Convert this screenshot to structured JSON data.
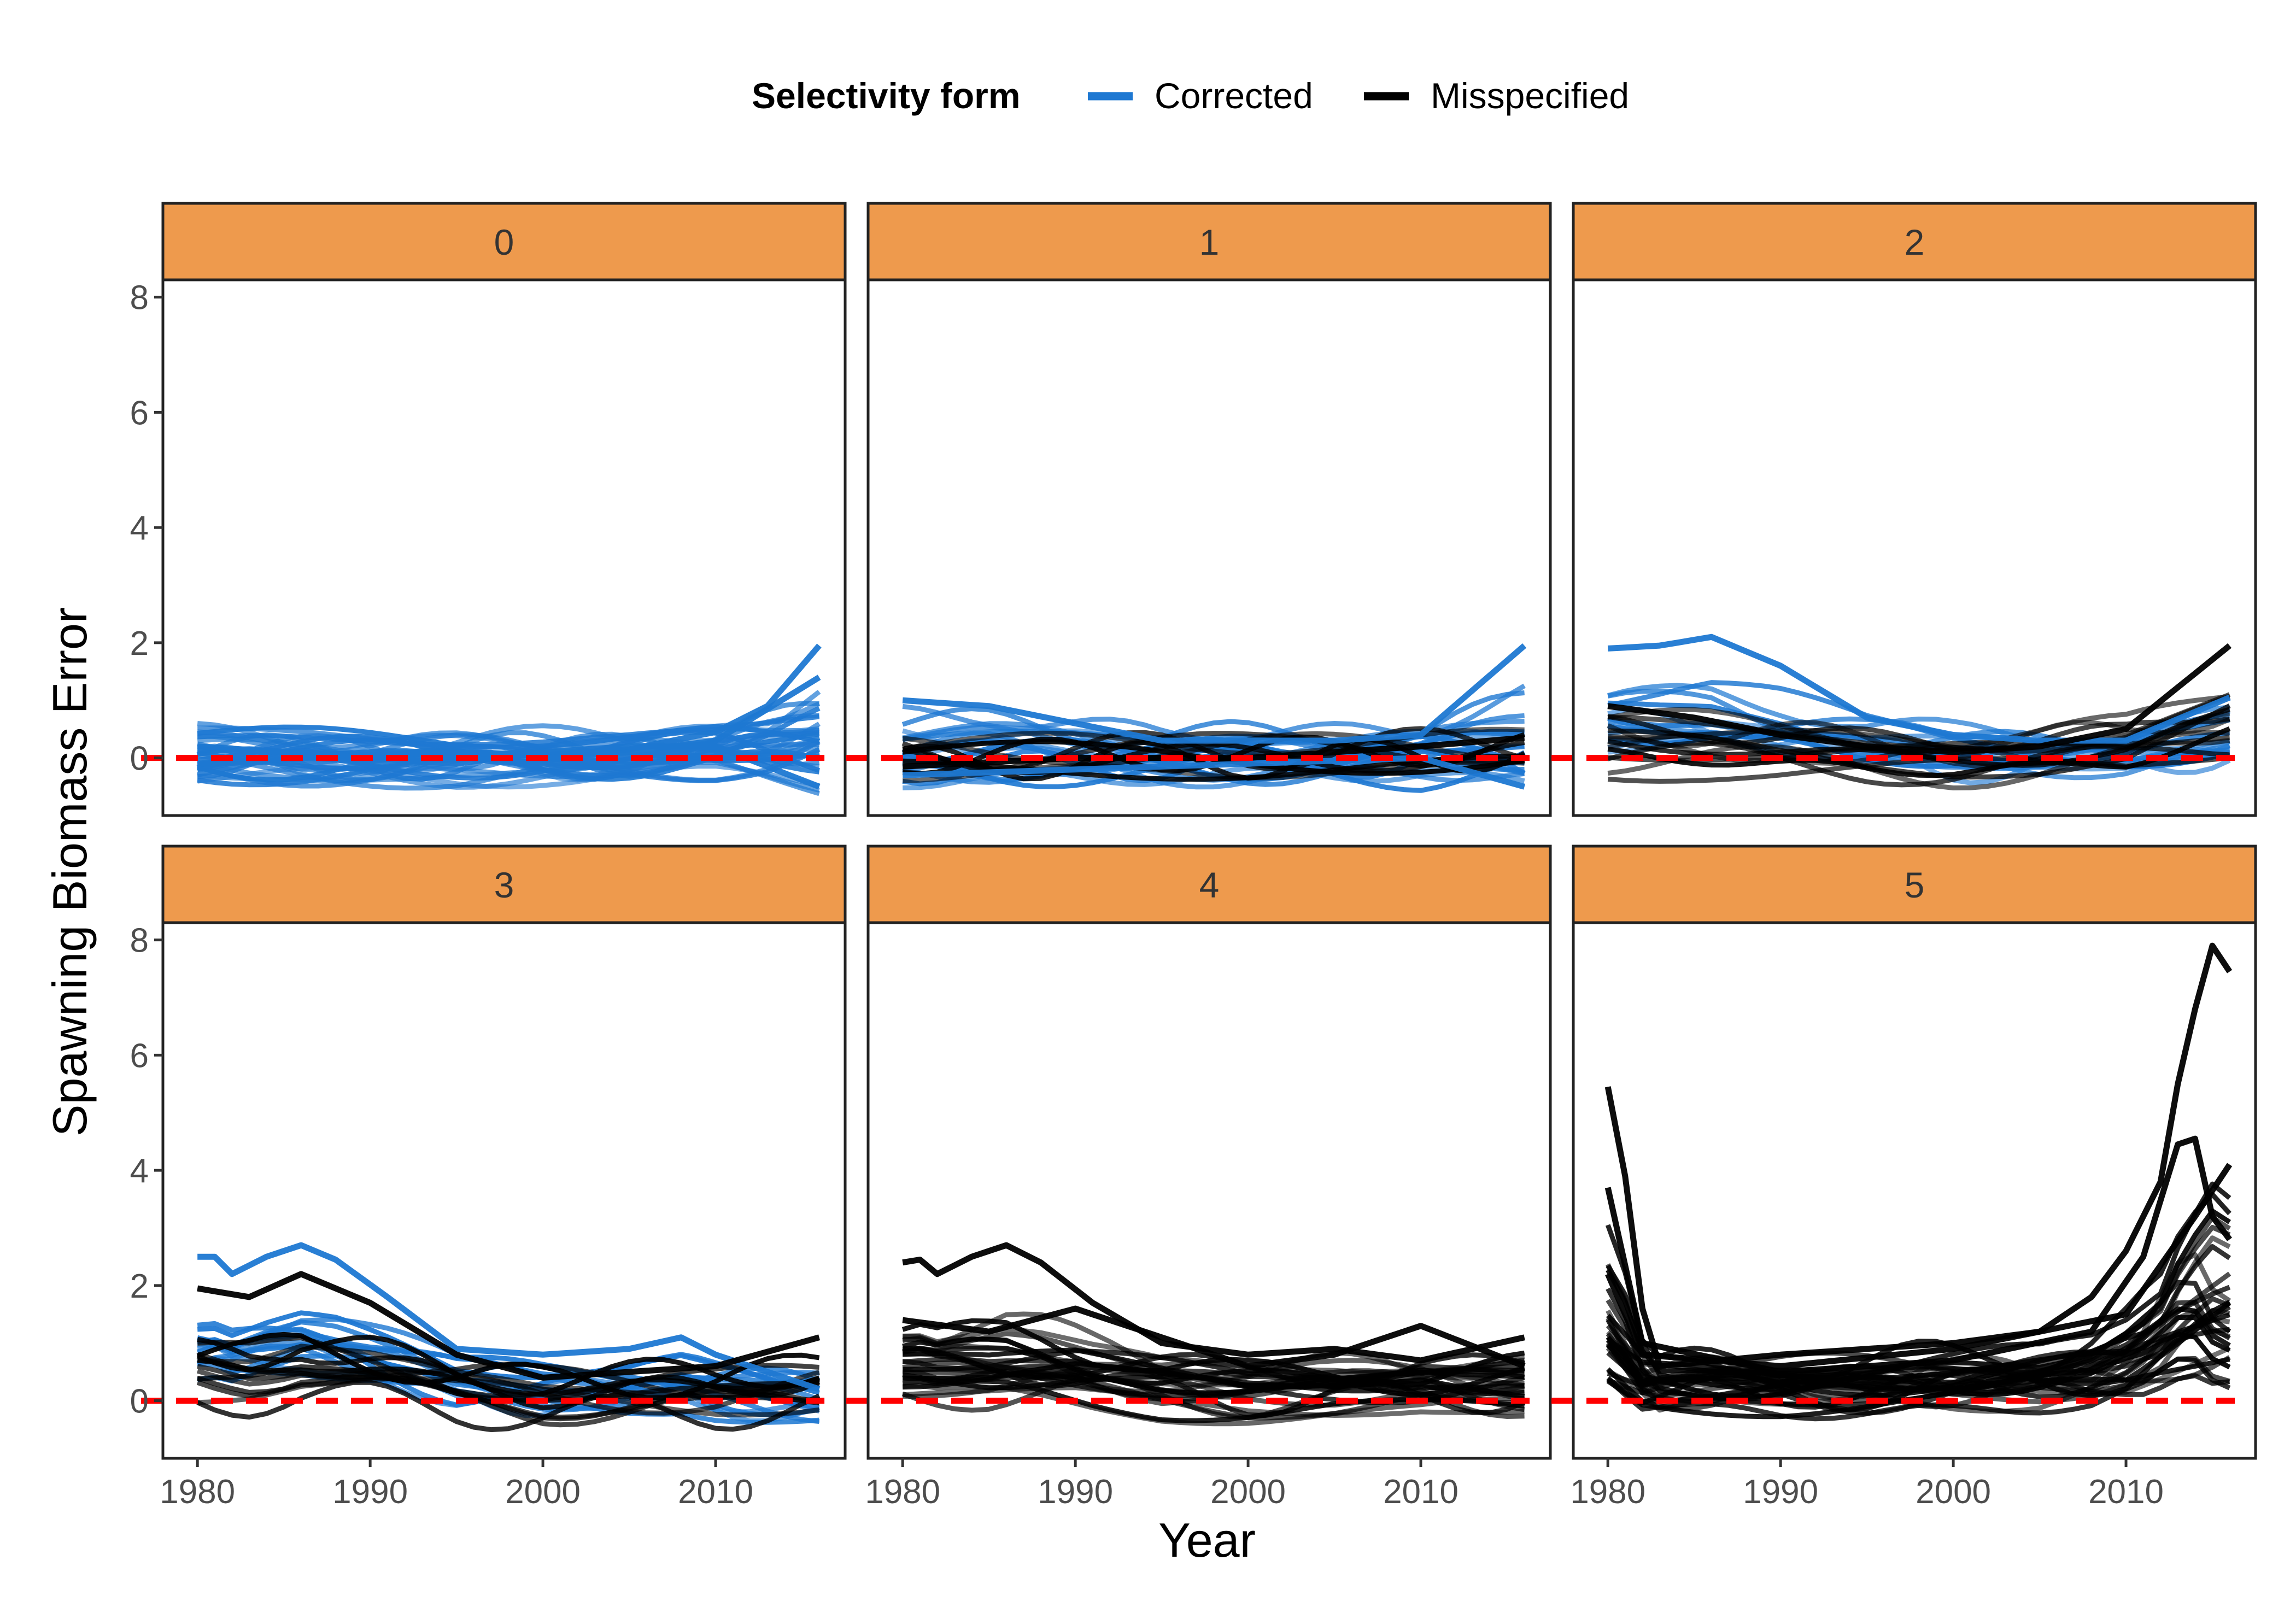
{
  "legend": {
    "title": "Selectivity form",
    "items": [
      {
        "label": "Corrected",
        "color": "#1E78D2"
      },
      {
        "label": "Misspecified",
        "color": "#000000"
      }
    ]
  },
  "axes": {
    "xlabel": "Year",
    "ylabel": "Spawning Biomass Error",
    "x_ticks": [
      "1980",
      "1990",
      "2000",
      "2010"
    ],
    "y_ticks": [
      "0",
      "2",
      "4",
      "6",
      "8"
    ]
  },
  "colors": {
    "strip_fill": "#EE9A4D",
    "reference_line": "#FF0000",
    "corrected": "#1E78D2",
    "misspecified": "#000000"
  },
  "chart_data": {
    "type": "line",
    "facet_variable": "panel",
    "x_range": [
      1980,
      2016
    ],
    "xlim": [
      1978,
      2017.5
    ],
    "ylim": [
      -1.0,
      8.3
    ],
    "reference_line": {
      "y": 0,
      "style": "dashed",
      "color": "#FF0000"
    },
    "xlabel": "Year",
    "ylabel": "Spawning Biomass Error",
    "panels": [
      {
        "label": "0",
        "description": "Mostly Corrected runs; small errors near 0, a few rising toward the end.",
        "series": [
          {
            "name": "Corrected",
            "points": [
              [
                1980,
                0.15
              ],
              [
                1985,
                0.1
              ],
              [
                1990,
                0.05
              ],
              [
                1995,
                0.0
              ],
              [
                2000,
                0.05
              ],
              [
                2005,
                0.15
              ],
              [
                2010,
                0.45
              ],
              [
                2013,
                0.9
              ],
              [
                2016,
                1.95
              ]
            ]
          },
          {
            "name": "Corrected",
            "points": [
              [
                1980,
                -0.1
              ],
              [
                1985,
                0.0
              ],
              [
                1990,
                0.05
              ],
              [
                1995,
                0.1
              ],
              [
                2000,
                0.05
              ],
              [
                2005,
                0.1
              ],
              [
                2010,
                0.3
              ],
              [
                2016,
                1.4
              ]
            ]
          },
          {
            "name": "Corrected",
            "points": [
              [
                1980,
                0.2
              ],
              [
                1985,
                0.1
              ],
              [
                1990,
                0.0
              ],
              [
                1995,
                -0.1
              ],
              [
                2000,
                0.1
              ],
              [
                2005,
                0.2
              ],
              [
                2010,
                0.2
              ],
              [
                2016,
                -0.5
              ]
            ]
          }
        ]
      },
      {
        "label": "1",
        "description": "Corrected band mostly within -0.3 to 1; Misspecified lines near 0.",
        "series": [
          {
            "name": "Corrected",
            "points": [
              [
                1980,
                1.0
              ],
              [
                1985,
                0.9
              ],
              [
                1990,
                0.6
              ],
              [
                1995,
                0.3
              ],
              [
                2000,
                0.3
              ],
              [
                2005,
                0.3
              ],
              [
                2010,
                0.4
              ],
              [
                2016,
                1.95
              ]
            ]
          },
          {
            "name": "Corrected",
            "points": [
              [
                1980,
                -0.3
              ],
              [
                1990,
                -0.2
              ],
              [
                2000,
                -0.1
              ],
              [
                2010,
                0.0
              ],
              [
                2016,
                -0.5
              ]
            ]
          },
          {
            "name": "Misspecified",
            "points": [
              [
                1980,
                -0.15
              ],
              [
                1990,
                0.0
              ],
              [
                2000,
                0.0
              ],
              [
                2010,
                0.2
              ],
              [
                2016,
                0.35
              ]
            ]
          }
        ]
      },
      {
        "label": "2",
        "description": "Corrected peaks ~2.1 around 1985; Misspecified band around 0 to 1.",
        "series": [
          {
            "name": "Corrected",
            "points": [
              [
                1980,
                1.9
              ],
              [
                1983,
                1.95
              ],
              [
                1986,
                2.1
              ],
              [
                1990,
                1.6
              ],
              [
                1995,
                0.7
              ],
              [
                2000,
                0.4
              ],
              [
                2005,
                0.3
              ],
              [
                2010,
                0.3
              ],
              [
                2016,
                1.05
              ]
            ]
          },
          {
            "name": "Misspecified",
            "points": [
              [
                1980,
                0.9
              ],
              [
                1985,
                0.7
              ],
              [
                1990,
                0.4
              ],
              [
                1995,
                0.2
              ],
              [
                2000,
                0.1
              ],
              [
                2005,
                0.2
              ],
              [
                2010,
                0.5
              ],
              [
                2016,
                1.95
              ]
            ]
          }
        ]
      },
      {
        "label": "3",
        "description": "Corrected max ~2.7 near 1986; Misspecified ~2.2; both settle 0 to 1.",
        "series": [
          {
            "name": "Corrected",
            "points": [
              [
                1980,
                2.5
              ],
              [
                1981,
                2.5
              ],
              [
                1982,
                2.2
              ],
              [
                1984,
                2.5
              ],
              [
                1986,
                2.7
              ],
              [
                1988,
                2.45
              ],
              [
                1991,
                1.8
              ],
              [
                1995,
                0.9
              ],
              [
                2000,
                0.8
              ],
              [
                2005,
                0.9
              ],
              [
                2008,
                1.1
              ],
              [
                2010,
                0.8
              ],
              [
                2016,
                0.2
              ]
            ]
          },
          {
            "name": "Misspecified",
            "points": [
              [
                1980,
                1.95
              ],
              [
                1983,
                1.8
              ],
              [
                1986,
                2.2
              ],
              [
                1990,
                1.7
              ],
              [
                1995,
                0.8
              ],
              [
                2000,
                0.4
              ],
              [
                2005,
                0.5
              ],
              [
                2010,
                0.6
              ],
              [
                2016,
                1.1
              ]
            ]
          }
        ]
      },
      {
        "label": "4",
        "description": "All Misspecified; max ~2.7 near 1986, otherwise -0.5 to 1.5.",
        "series": [
          {
            "name": "Misspecified",
            "points": [
              [
                1980,
                2.4
              ],
              [
                1981,
                2.45
              ],
              [
                1982,
                2.2
              ],
              [
                1984,
                2.5
              ],
              [
                1986,
                2.7
              ],
              [
                1988,
                2.4
              ],
              [
                1991,
                1.7
              ],
              [
                1995,
                1.0
              ],
              [
                2000,
                0.8
              ],
              [
                2005,
                0.9
              ],
              [
                2010,
                0.7
              ],
              [
                2016,
                1.1
              ]
            ]
          },
          {
            "name": "Misspecified",
            "points": [
              [
                1980,
                1.4
              ],
              [
                1985,
                1.2
              ],
              [
                1990,
                1.6
              ],
              [
                1995,
                1.1
              ],
              [
                2000,
                0.6
              ],
              [
                2005,
                0.8
              ],
              [
                2010,
                1.3
              ],
              [
                2016,
                0.6
              ]
            ]
          }
        ]
      },
      {
        "label": "5",
        "description": "All Misspecified; spikes to ~5.4 in 1980 and ~7.9 in 2015.",
        "series": [
          {
            "name": "Misspecified",
            "points": [
              [
                1980,
                5.45
              ],
              [
                1981,
                3.9
              ],
              [
                1982,
                1.6
              ],
              [
                1983,
                0.6
              ],
              [
                1990,
                0.8
              ],
              [
                2000,
                1.0
              ],
              [
                2005,
                1.2
              ],
              [
                2008,
                1.8
              ],
              [
                2010,
                2.6
              ],
              [
                2012,
                3.8
              ],
              [
                2013,
                5.5
              ],
              [
                2014,
                6.8
              ],
              [
                2015,
                7.9
              ],
              [
                2016,
                7.45
              ]
            ]
          },
          {
            "name": "Misspecified",
            "points": [
              [
                1980,
                3.7
              ],
              [
                1982,
                1.0
              ],
              [
                1990,
                0.5
              ],
              [
                2000,
                0.7
              ],
              [
                2008,
                1.2
              ],
              [
                2011,
                2.5
              ],
              [
                2013,
                4.45
              ],
              [
                2014,
                4.55
              ],
              [
                2015,
                3.2
              ],
              [
                2016,
                2.8
              ]
            ]
          },
          {
            "name": "Misspecified",
            "points": [
              [
                1980,
                2.2
              ],
              [
                1982,
                0.8
              ],
              [
                1990,
                0.6
              ],
              [
                2000,
                0.9
              ],
              [
                2010,
                1.5
              ],
              [
                2014,
                3.2
              ],
              [
                2016,
                4.1
              ]
            ]
          }
        ]
      }
    ]
  }
}
